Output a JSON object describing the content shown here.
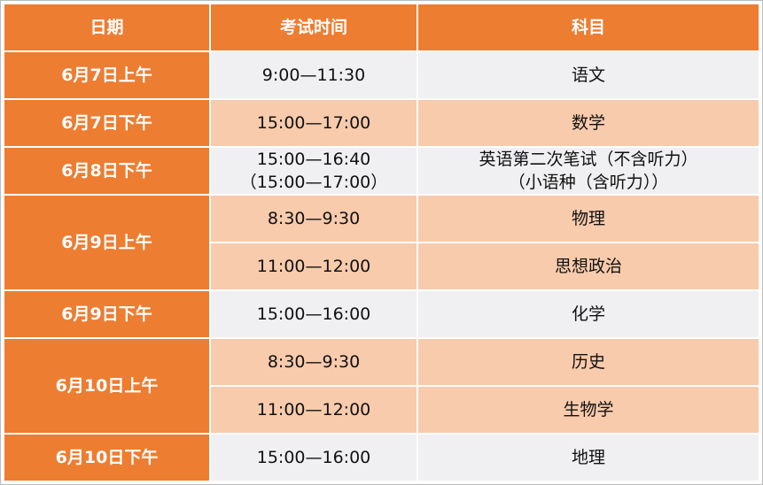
{
  "headers": [
    "日期",
    "考试时间",
    "科目"
  ],
  "rows": [
    {
      "date": "6月7日上午",
      "time": "9:00—11:30",
      "subject": "语文"
    },
    {
      "date": "6月7日下午",
      "time": "15:00—17:00",
      "subject": "数学"
    },
    {
      "date": "6月8日下午",
      "time": "15:00—16:40",
      "time2": "（15:00—17:00）",
      "subject": "英语第二次笔试（不含听力）",
      "subject2": "（小语种（含听力））"
    },
    {
      "date": "6月9日上午",
      "time": "8:30—9:30",
      "subject": "物理"
    },
    {
      "time": "11:00—12:00",
      "subject": "思想政治"
    },
    {
      "date": "6月9日下午",
      "time": "15:00—16:00",
      "subject": "化学"
    },
    {
      "date": "6月10日上午",
      "time": "8:30—9:30",
      "subject": "历史"
    },
    {
      "time": "11:00—12:00",
      "subject": "生物学"
    },
    {
      "date": "6月10日下午",
      "time": "15:00—16:00",
      "subject": "地理"
    }
  ],
  "colors": {
    "header": "#ED7D31",
    "stripe_gray": "#F0F0F2",
    "stripe_peach": "#F7CBAC"
  }
}
